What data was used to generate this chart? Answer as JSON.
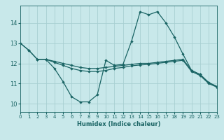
{
  "xlabel": "Humidex (Indice chaleur)",
  "bg_color": "#c8e8ea",
  "grid_color": "#a8cfd2",
  "line_color": "#1a6464",
  "xlim": [
    0,
    23
  ],
  "ylim": [
    9.6,
    14.85
  ],
  "xticks": [
    0,
    1,
    2,
    3,
    4,
    5,
    6,
    7,
    8,
    9,
    10,
    11,
    12,
    13,
    14,
    15,
    16,
    17,
    18,
    19,
    20,
    21,
    22,
    23
  ],
  "yticks": [
    10,
    11,
    12,
    13,
    14
  ],
  "line1_x": [
    0,
    1,
    2,
    3,
    4,
    5,
    6,
    7,
    8,
    9,
    10,
    11,
    12,
    13,
    14,
    15,
    16,
    17,
    18,
    19,
    20,
    21,
    22,
    23
  ],
  "line1_y": [
    13.0,
    12.65,
    12.2,
    12.2,
    11.75,
    11.1,
    10.35,
    10.1,
    10.1,
    10.45,
    12.15,
    11.9,
    11.95,
    13.1,
    14.55,
    14.4,
    14.55,
    14.0,
    13.3,
    12.45,
    11.65,
    11.45,
    11.05,
    10.85
  ],
  "line2_x": [
    0,
    1,
    2,
    3,
    4,
    5,
    6,
    7,
    8,
    9,
    10,
    11,
    12,
    13,
    14,
    15,
    16,
    17,
    18,
    19,
    20,
    21,
    22,
    23
  ],
  "line2_y": [
    13.0,
    12.65,
    12.2,
    12.2,
    12.1,
    12.0,
    11.9,
    11.8,
    11.75,
    11.75,
    11.8,
    11.85,
    11.9,
    11.95,
    12.0,
    12.0,
    12.05,
    12.1,
    12.15,
    12.2,
    11.65,
    11.45,
    11.05,
    10.85
  ],
  "line3_x": [
    2,
    3,
    4,
    5,
    6,
    7,
    8,
    9,
    10,
    11,
    12,
    13,
    14,
    15,
    16,
    17,
    18,
    19,
    20,
    21,
    22,
    23
  ],
  "line3_y": [
    12.2,
    12.2,
    12.05,
    11.9,
    11.75,
    11.65,
    11.6,
    11.6,
    11.65,
    11.75,
    11.8,
    11.88,
    11.92,
    11.95,
    12.0,
    12.05,
    12.1,
    12.15,
    11.6,
    11.4,
    11.0,
    10.82
  ]
}
